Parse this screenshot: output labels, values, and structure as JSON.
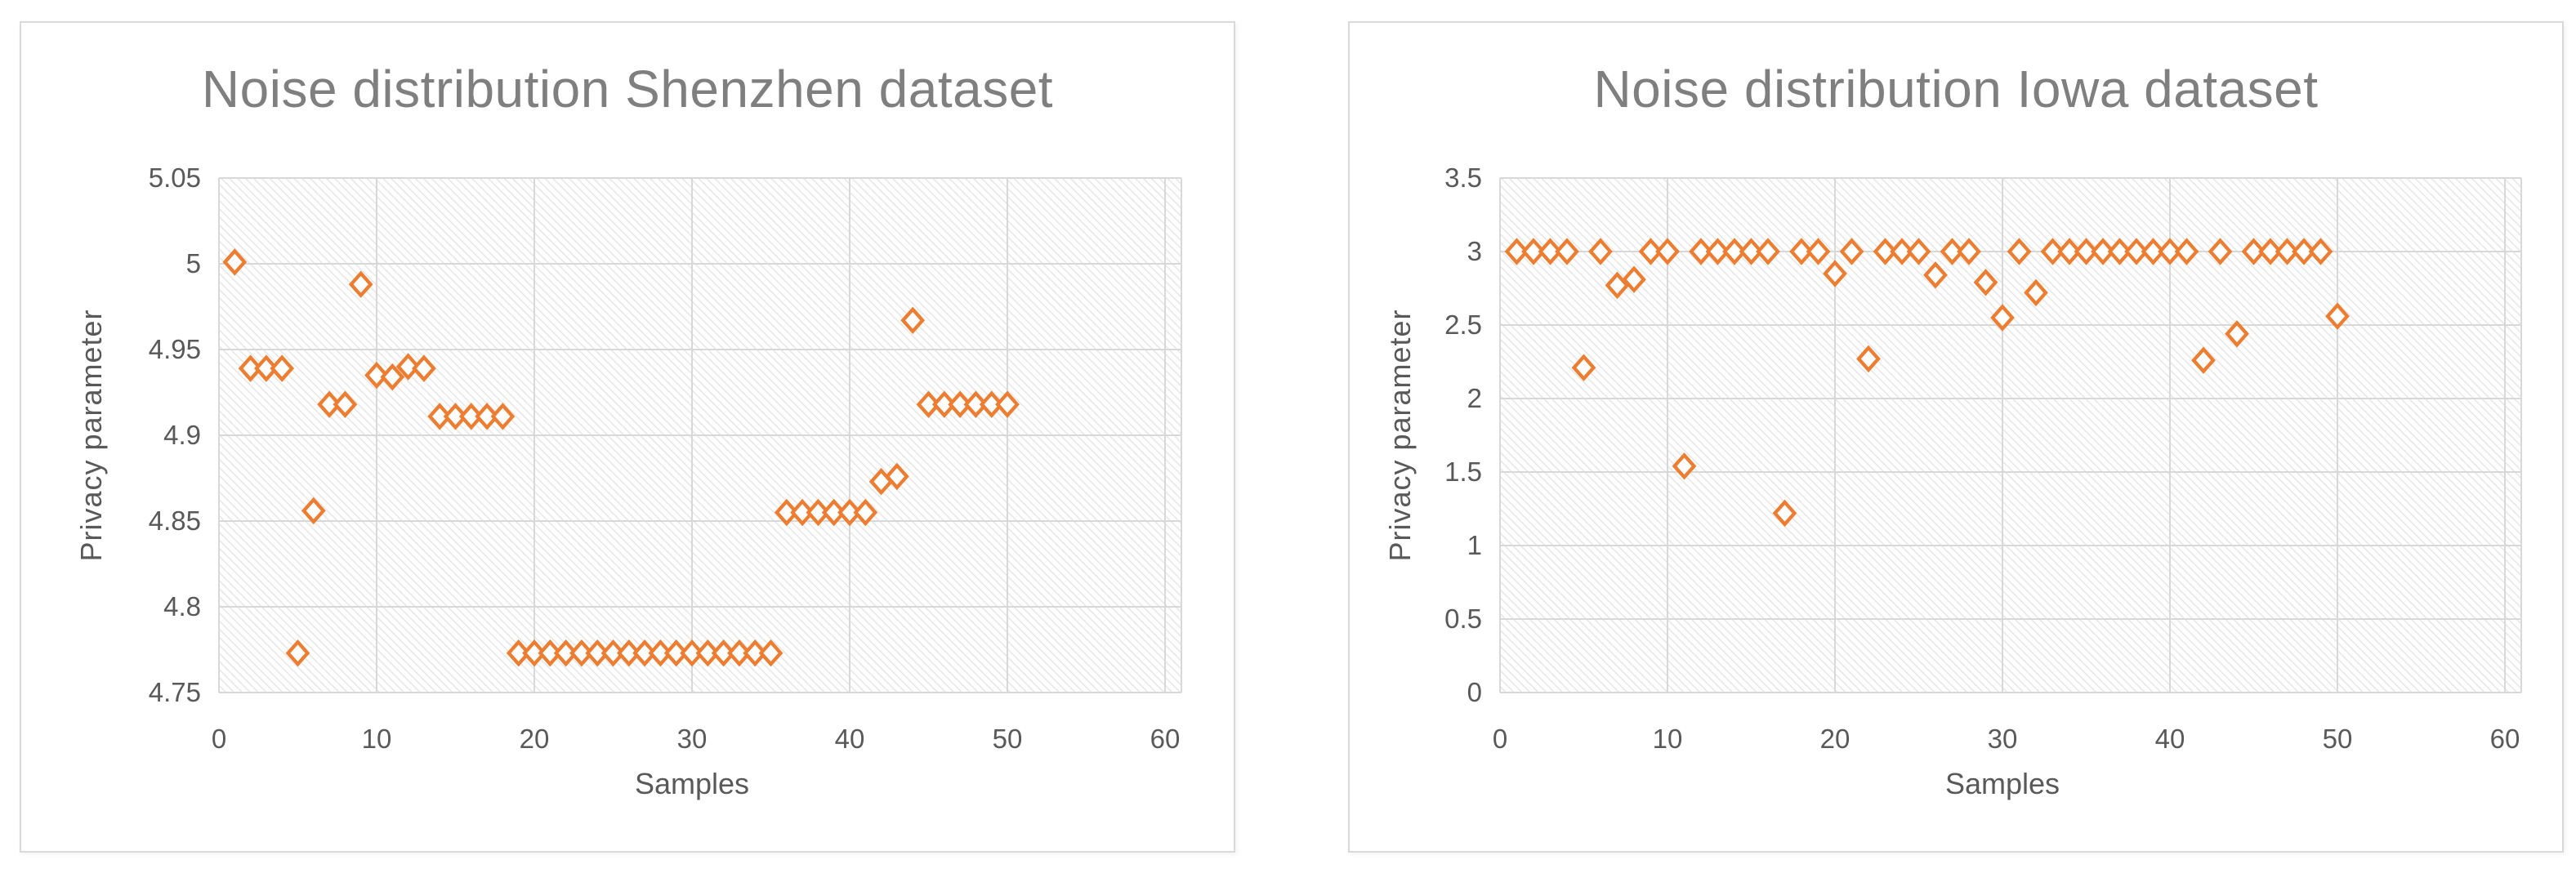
{
  "styles": {
    "marker_color": "#ED7D31",
    "title_color": "#7F7F7F",
    "axis_text_color": "#595959",
    "gridline_color": "#D8D8D8",
    "hatch_line_color": "#E6E6E6",
    "panel_border_color": "#D9D9D9",
    "background": "#FFFFFF"
  },
  "chart_data": [
    {
      "type": "scatter",
      "title": "Noise distribution Shenzhen dataset",
      "xlabel": "Samples",
      "ylabel": "Privacy parameter",
      "xlim": [
        0,
        60
      ],
      "ylim": [
        4.75,
        5.05
      ],
      "xticks": [
        0,
        10,
        20,
        30,
        40,
        50,
        60
      ],
      "xtick_labels": [
        "0",
        "10",
        "20",
        "30",
        "40",
        "50",
        "60"
      ],
      "yticks": [
        4.75,
        4.8,
        4.85,
        4.9,
        4.95,
        5,
        5.05
      ],
      "ytick_labels": [
        "4.75",
        "4.8",
        "4.85",
        "4.9",
        "4.95",
        "5",
        "5.05"
      ],
      "grid": true,
      "legend": false,
      "marker": "open-diamond",
      "x": [
        1,
        2,
        3,
        4,
        5,
        6,
        7,
        8,
        9,
        10,
        11,
        12,
        13,
        14,
        15,
        16,
        17,
        18,
        19,
        20,
        21,
        22,
        23,
        24,
        25,
        26,
        27,
        28,
        29,
        30,
        31,
        32,
        33,
        34,
        35,
        36,
        37,
        38,
        39,
        40,
        41,
        42,
        43,
        44,
        45,
        46,
        47,
        48,
        49,
        50
      ],
      "y": [
        5.001,
        4.939,
        4.939,
        4.939,
        4.773,
        4.856,
        4.918,
        4.918,
        4.988,
        4.935,
        4.934,
        4.94,
        4.939,
        4.911,
        4.911,
        4.911,
        4.911,
        4.911,
        4.773,
        4.773,
        4.773,
        4.773,
        4.773,
        4.773,
        4.773,
        4.773,
        4.773,
        4.773,
        4.773,
        4.773,
        4.773,
        4.773,
        4.773,
        4.773,
        4.773,
        4.855,
        4.855,
        4.855,
        4.855,
        4.855,
        4.855,
        4.873,
        4.876,
        4.967,
        4.918,
        4.918,
        4.918,
        4.918,
        4.918,
        4.918
      ]
    },
    {
      "type": "scatter",
      "title": "Noise distribution Iowa dataset",
      "xlabel": "Samples",
      "ylabel": "Privacy parameter",
      "xlim": [
        0,
        60
      ],
      "ylim": [
        0,
        3.5
      ],
      "xticks": [
        0,
        10,
        20,
        30,
        40,
        50,
        60
      ],
      "xtick_labels": [
        "0",
        "10",
        "20",
        "30",
        "40",
        "50",
        "60"
      ],
      "yticks": [
        0,
        0.5,
        1,
        1.5,
        2,
        2.5,
        3,
        3.5
      ],
      "ytick_labels": [
        "0",
        "0.5",
        "1",
        "1.5",
        "2",
        "2.5",
        "3",
        "3.5"
      ],
      "grid": true,
      "legend": false,
      "marker": "open-diamond",
      "x": [
        1,
        2,
        3,
        4,
        5,
        6,
        7,
        8,
        9,
        10,
        11,
        12,
        13,
        14,
        15,
        16,
        17,
        18,
        19,
        20,
        21,
        22,
        23,
        24,
        25,
        26,
        27,
        28,
        29,
        30,
        31,
        32,
        33,
        34,
        35,
        36,
        37,
        38,
        39,
        40,
        41,
        42,
        43,
        44,
        45,
        46,
        47,
        48,
        49,
        50
      ],
      "y": [
        3,
        3,
        3,
        3,
        2.21,
        3,
        2.77,
        2.81,
        3,
        3,
        1.54,
        3,
        3,
        3,
        3,
        3,
        1.22,
        3,
        3,
        2.85,
        3,
        2.27,
        3,
        3,
        3,
        2.84,
        3,
        3,
        2.79,
        2.55,
        3,
        2.72,
        3,
        3,
        3,
        3,
        3,
        3,
        3,
        3,
        3,
        2.26,
        3,
        2.44,
        3,
        3,
        3,
        3,
        3,
        2.56
      ]
    }
  ]
}
